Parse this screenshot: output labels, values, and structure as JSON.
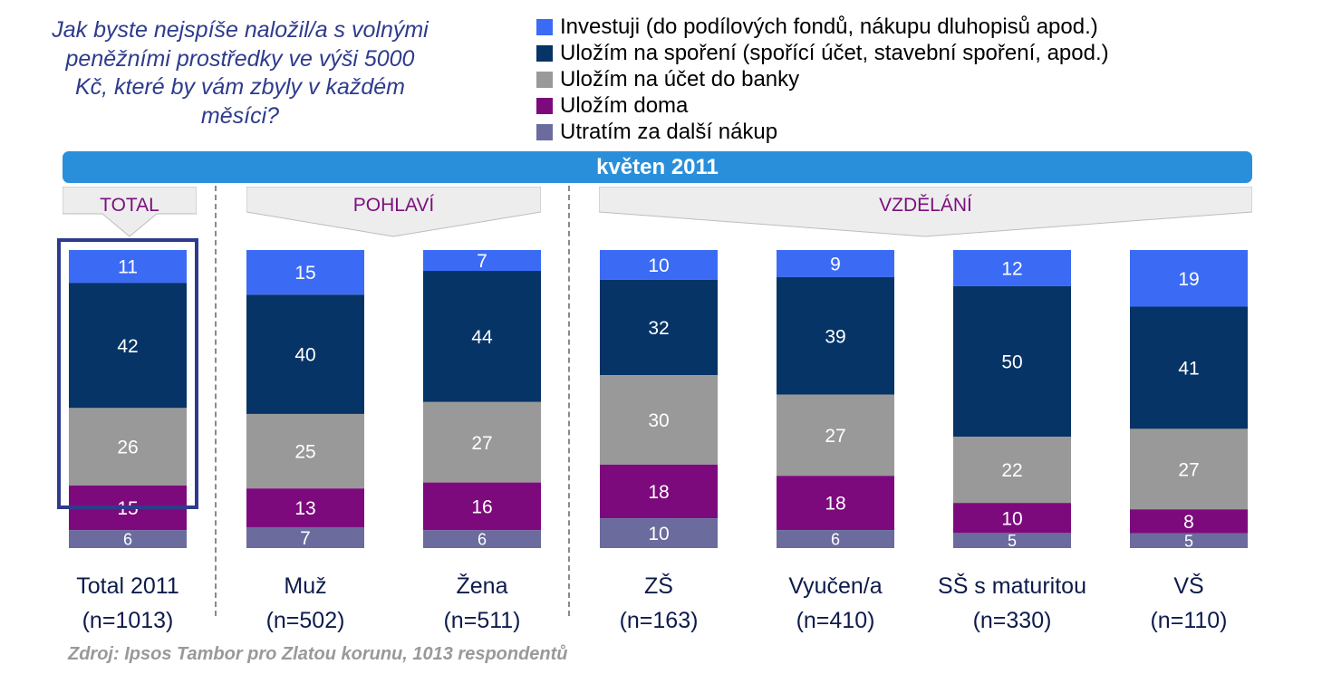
{
  "question": "Jak byste nejspíše naložil/a s volnými peněžními prostředky ve výši 5000 Kč, které by vám zbyly v každém měsíci?",
  "banner": "květen 2011",
  "groups": [
    {
      "label": "TOTAL"
    },
    {
      "label": "POHLAVÍ"
    },
    {
      "label": "VZDĚLÁNÍ"
    }
  ],
  "source": "Zdroj: Ipsos Tambor pro Zlatou korunu, 1013 respondentů",
  "colors": {
    "investuji": "#3B6BF5",
    "sporeni": "#063466",
    "banka": "#999999",
    "doma": "#7D0A7D",
    "nakup": "#6B6B9E",
    "highlight": "#2E3B8C"
  },
  "chart_data": {
    "type": "bar",
    "stacked": true,
    "normalized": true,
    "categories": [
      "Total 2011",
      "Muž",
      "Žena",
      "ZŠ",
      "Vyučen/a",
      "SŠ s maturitou",
      "VŠ"
    ],
    "category_n": [
      "(n=1013)",
      "(n=502)",
      "(n=511)",
      "(n=163)",
      "(n=410)",
      "(n=330)",
      "(n=110)"
    ],
    "series": [
      {
        "name": "Investuji (do podílových fondů, nákupu dluhopisů apod.)",
        "values": [
          11,
          15,
          7,
          10,
          9,
          12,
          19
        ],
        "color": "#3B6BF5"
      },
      {
        "name": "Uložím na spoření (spořící účet, stavební spoření, apod.)",
        "values": [
          42,
          40,
          44,
          32,
          39,
          50,
          41
        ],
        "color": "#063466"
      },
      {
        "name": "Uložím na účet do banky",
        "values": [
          26,
          25,
          27,
          30,
          27,
          22,
          27
        ],
        "color": "#999999"
      },
      {
        "name": "Uložím doma",
        "values": [
          15,
          13,
          16,
          18,
          18,
          10,
          8
        ],
        "color": "#7D0A7D"
      },
      {
        "name": "Utratím za další nákup",
        "values": [
          6,
          7,
          6,
          10,
          6,
          5,
          5
        ],
        "color": "#6B6B9E"
      }
    ],
    "highlighted_category": "Total 2011",
    "legend": "top-right"
  }
}
